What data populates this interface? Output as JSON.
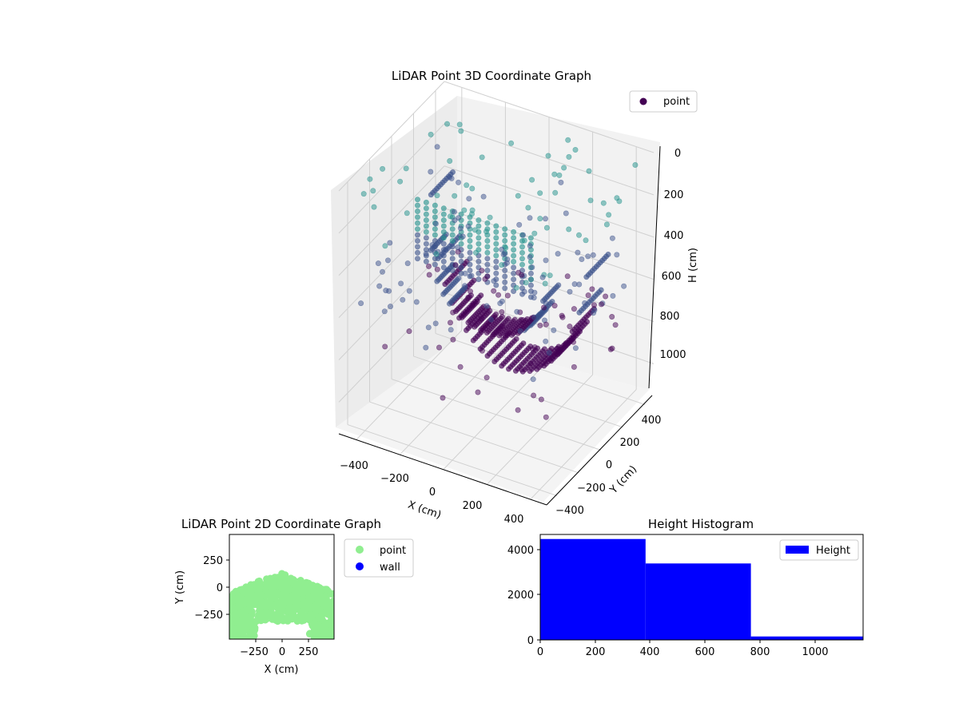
{
  "figure": {
    "background": "#ffffff"
  },
  "chart_data": [
    {
      "id": "lidar-3d",
      "type": "scatter",
      "title": "LiDAR Point 3D Coordinate Graph",
      "xlabel": "X (cm)",
      "ylabel": "Y (cm)",
      "zlabel": "H (cm)",
      "x_ticks": [
        "−400",
        "−200",
        "0",
        "200",
        "400"
      ],
      "y_ticks": [
        "−400",
        "−200",
        "0",
        "200",
        "400"
      ],
      "z_ticks": [
        "0",
        "200",
        "400",
        "600",
        "800",
        "1000"
      ],
      "xlim": [
        -480,
        480
      ],
      "ylim": [
        -480,
        480
      ],
      "zlim": [
        0,
        1150
      ],
      "z_inverted": true,
      "grid": true,
      "legend": {
        "position": "top-right",
        "entries": [
          "point"
        ]
      },
      "colormap": "viridis (colored by height)",
      "colors": {
        "legend_marker": "#440154",
        "high": "#440154",
        "mid": "#3b528b",
        "low": "#21918c",
        "pane": "#f2f2f2",
        "grid": "#d0d0d0"
      },
      "series": [
        {
          "name": "point",
          "description": "Dome-shaped ceiling arcs (x from about -350 to 350, y about 0 to 300, H up to about 1000) with vertical wall columns and scattered ground points",
          "sample_points": [
            {
              "x": -300,
              "y": 200,
              "z": 560
            },
            {
              "x": -150,
              "y": 200,
              "z": 880
            },
            {
              "x": 0,
              "y": 200,
              "z": 990
            },
            {
              "x": 150,
              "y": 200,
              "z": 880
            },
            {
              "x": 300,
              "y": 200,
              "z": 560
            },
            {
              "x": -200,
              "y": -50,
              "z": 600
            },
            {
              "x": 0,
              "y": -50,
              "z": 720
            },
            {
              "x": 200,
              "y": -50,
              "z": 600
            },
            {
              "x": -450,
              "y": 100,
              "z": 450
            },
            {
              "x": 450,
              "y": 50,
              "z": 450
            },
            {
              "x": -420,
              "y": -350,
              "z": 80
            },
            {
              "x": 300,
              "y": -380,
              "z": 60
            }
          ]
        }
      ]
    },
    {
      "id": "lidar-2d",
      "type": "scatter",
      "title": "LiDAR Point 2D Coordinate Graph",
      "xlabel": "X (cm)",
      "ylabel": "Y (cm)",
      "x_ticks": [
        "−250",
        "0",
        "250"
      ],
      "y_ticks": [
        "250",
        "0",
        "−250"
      ],
      "xlim": [
        -500,
        500
      ],
      "ylim": [
        -500,
        500
      ],
      "grid": false,
      "legend": {
        "position": "outside-right",
        "entries": [
          "point",
          "wall"
        ]
      },
      "colors": {
        "point": "#90ee90",
        "wall": "#0000ff"
      },
      "series": [
        {
          "name": "point",
          "description": "Dense blob covering roughly x -480..480, y -480..130"
        },
        {
          "name": "wall",
          "description": "No visible points"
        }
      ]
    },
    {
      "id": "height-hist",
      "type": "bar",
      "title": "Height Histogram",
      "x_ticks": [
        "0",
        "200",
        "400",
        "600",
        "800",
        "1000"
      ],
      "y_ticks": [
        "0",
        "2000",
        "4000"
      ],
      "xlim": [
        0,
        1180
      ],
      "ylim": [
        0,
        4650
      ],
      "grid": false,
      "legend": {
        "position": "top-right",
        "entries": [
          "Height"
        ]
      },
      "colors": {
        "bar": "#0000ff"
      },
      "bins": [
        {
          "from": 0,
          "to": 385,
          "count": 4450
        },
        {
          "from": 385,
          "to": 770,
          "count": 3370
        },
        {
          "from": 770,
          "to": 1180,
          "count": 150
        }
      ]
    }
  ]
}
